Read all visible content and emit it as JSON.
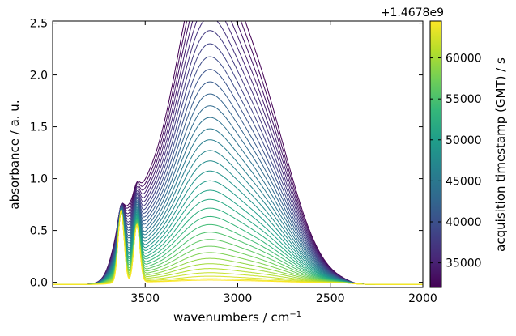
{
  "chart_data": {
    "type": "line",
    "xlabel": "wavenumbers / cm",
    "xlabel_superscript": "−1",
    "ylabel": "absorbance / a. u.",
    "xlim": [
      4000,
      2000
    ],
    "ylim": [
      -0.05,
      2.52
    ],
    "x_ticks": [
      3500,
      3000,
      2500,
      2000
    ],
    "x_tick_labels": [
      "3500",
      "3000",
      "2500",
      "2000"
    ],
    "y_ticks": [
      0.0,
      0.5,
      1.0,
      1.5,
      2.0,
      2.5
    ],
    "y_tick_labels": [
      "0.0",
      "0.5",
      "1.0",
      "1.5",
      "2.0",
      "2.5"
    ],
    "grid": false,
    "colorbar": {
      "label": "acquisition timestamp (GMT) / s",
      "offset_label": "+1.4678e9",
      "colormap": "viridis",
      "range": [
        32000,
        64500
      ],
      "ticks": [
        35000,
        40000,
        45000,
        50000,
        55000,
        60000
      ],
      "tick_labels": [
        "35000",
        "40000",
        "45000",
        "50000",
        "55000",
        "60000"
      ],
      "colors": [
        "#440154",
        "#482878",
        "#3e4989",
        "#31688e",
        "#26828e",
        "#1f9e89",
        "#35b779",
        "#6ece58",
        "#b5de2b",
        "#fde725"
      ]
    },
    "series_count": 36,
    "series_profile": {
      "description_fields": "each spectrum = broad band + narrow OH peaks + baseline",
      "first_spectrum_peak_absorbance": 2.5,
      "last_spectrum_peak_absorbance": 0.02,
      "narrow_peak_positions": [
        3630,
        3545
      ],
      "narrow_peak_max_absorbance": 1.09,
      "broad_band_center": 3000
    }
  }
}
